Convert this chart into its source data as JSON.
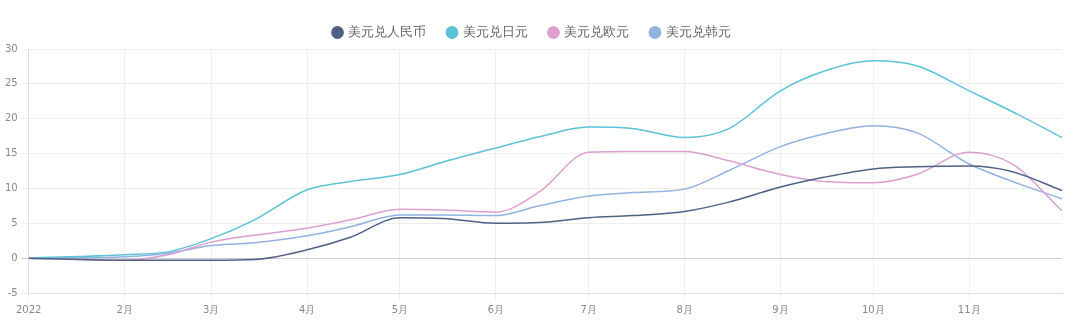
{
  "chart_data": {
    "type": "line",
    "legend": "top",
    "grid": true,
    "marker": "none",
    "line_style": "solid",
    "x": [
      "2022-01-01",
      "2022-02-01",
      "2022-02-15",
      "2022-03-01",
      "2022-03-15",
      "2022-04-01",
      "2022-04-15",
      "2022-05-01",
      "2022-05-15",
      "2022-06-01",
      "2022-06-15",
      "2022-07-01",
      "2022-07-15",
      "2022-08-01",
      "2022-08-15",
      "2022-09-01",
      "2022-09-15",
      "2022-10-01",
      "2022-10-15",
      "2022-11-01",
      "2022-11-15",
      "2022-12-01"
    ],
    "series": [
      {
        "name": "美元兑人民币",
        "color": "#4e6185",
        "values": [
          0,
          -0.3,
          -0.3,
          -0.3,
          -0.2,
          1.2,
          3,
          5.8,
          5.7,
          5,
          5.1,
          5.8,
          6.1,
          6.7,
          8,
          10.2,
          11.6,
          12.8,
          13.1,
          13.2,
          12.4,
          9.7
        ]
      },
      {
        "name": "美元兑日元",
        "color": "#5bc2d8",
        "values": [
          0,
          0.5,
          0.9,
          2.8,
          5.5,
          9.8,
          11,
          12,
          13.8,
          15.8,
          17.4,
          18.8,
          18.6,
          17.3,
          18.5,
          24,
          26.8,
          28.3,
          27.6,
          24,
          21,
          17.3
        ]
      },
      {
        "name": "美元兑欧元",
        "color": "#dc9fd0",
        "values": [
          0,
          -0.3,
          0.5,
          2.3,
          3.3,
          4.3,
          5.5,
          7,
          6.9,
          6.6,
          9.5,
          15.2,
          15.3,
          15.3,
          14,
          12,
          11,
          10.8,
          12,
          15.2,
          13.5,
          6.8
        ]
      },
      {
        "name": "美元兑韩元",
        "color": "#92b2e0",
        "values": [
          0,
          0.2,
          0.7,
          1.8,
          2.2,
          3.2,
          4.5,
          6.2,
          6.2,
          6.1,
          7.5,
          8.9,
          9.4,
          9.9,
          12.5,
          16,
          17.8,
          19,
          18,
          13.5,
          11,
          8.5
        ]
      }
    ],
    "xlim": [
      "2022-01-01",
      "2022-12-01"
    ],
    "xticks": [
      {
        "value": "2022-01-01",
        "label": "2022"
      },
      {
        "value": "2022-02-01",
        "label": "2月"
      },
      {
        "value": "2022-03-01",
        "label": "3月"
      },
      {
        "value": "2022-04-01",
        "label": "4月"
      },
      {
        "value": "2022-05-01",
        "label": "5月"
      },
      {
        "value": "2022-06-01",
        "label": "6月"
      },
      {
        "value": "2022-07-01",
        "label": "7月"
      },
      {
        "value": "2022-08-01",
        "label": "8月"
      },
      {
        "value": "2022-09-01",
        "label": "9月"
      },
      {
        "value": "2022-10-01",
        "label": "10月"
      },
      {
        "value": "2022-11-01",
        "label": "11月"
      }
    ],
    "ylim": [
      -5,
      30
    ],
    "yticks": [
      -5,
      0,
      5,
      10,
      15,
      20,
      25,
      30
    ]
  }
}
